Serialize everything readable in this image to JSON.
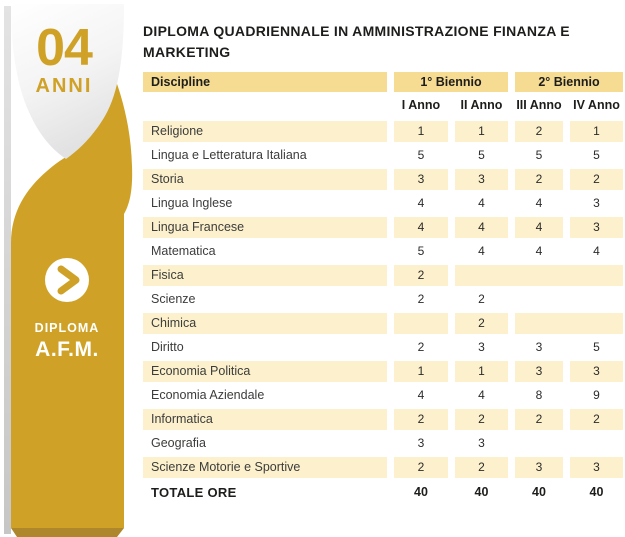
{
  "colors": {
    "gold": "#CFA227",
    "gold_dark": "#AE862B",
    "table_header_bg": "#F6DB92",
    "row_shade_bg": "#FCF1CC",
    "text_dark": "#1D1D1B"
  },
  "sidebar": {
    "years_number": "04",
    "years_label": "ANNI",
    "cta_label": "DIPLOMA",
    "cta_acronym": "A.F.M.",
    "chevron_icon": "chevron-right"
  },
  "header": {
    "title": "DIPLOMA QUADRIENNALE IN AMMINISTRAZIONE FINANZA E MARKETING"
  },
  "table": {
    "discipline_header": "Discipline",
    "group_headers": [
      "1° Biennio",
      "2° Biennio"
    ],
    "year_headers": [
      "I Anno",
      "II Anno",
      "III Anno",
      "IV Anno"
    ],
    "rows": [
      {
        "discipline": "Religione",
        "values": [
          "1",
          "1",
          "2",
          "1"
        ]
      },
      {
        "discipline": "Lingua e Letteratura Italiana",
        "values": [
          "5",
          "5",
          "5",
          "5"
        ]
      },
      {
        "discipline": "Storia",
        "values": [
          "3",
          "3",
          "2",
          "2"
        ]
      },
      {
        "discipline": "Lingua Inglese",
        "values": [
          "4",
          "4",
          "4",
          "3"
        ]
      },
      {
        "discipline": "Lingua Francese",
        "values": [
          "4",
          "4",
          "4",
          "3"
        ]
      },
      {
        "discipline": "Matematica",
        "values": [
          "5",
          "4",
          "4",
          "4"
        ]
      },
      {
        "discipline": "Fisica",
        "values": [
          "2",
          "",
          "",
          ""
        ]
      },
      {
        "discipline": "Scienze",
        "values": [
          "2",
          "2",
          "",
          ""
        ]
      },
      {
        "discipline": "Chimica",
        "values": [
          "",
          "2",
          "",
          ""
        ]
      },
      {
        "discipline": "Diritto",
        "values": [
          "2",
          "3",
          "3",
          "5"
        ]
      },
      {
        "discipline": "Economia Politica",
        "values": [
          "1",
          "1",
          "3",
          "3"
        ]
      },
      {
        "discipline": "Economia Aziendale",
        "values": [
          "4",
          "4",
          "8",
          "9"
        ]
      },
      {
        "discipline": "Informatica",
        "values": [
          "2",
          "2",
          "2",
          "2"
        ]
      },
      {
        "discipline": "Geografia",
        "values": [
          "3",
          "3",
          "",
          ""
        ]
      },
      {
        "discipline": "Scienze Motorie e Sportive",
        "values": [
          "2",
          "2",
          "3",
          "3"
        ]
      }
    ],
    "total_row": {
      "label": "TOTALE ORE",
      "values": [
        "40",
        "40",
        "40",
        "40"
      ]
    }
  }
}
